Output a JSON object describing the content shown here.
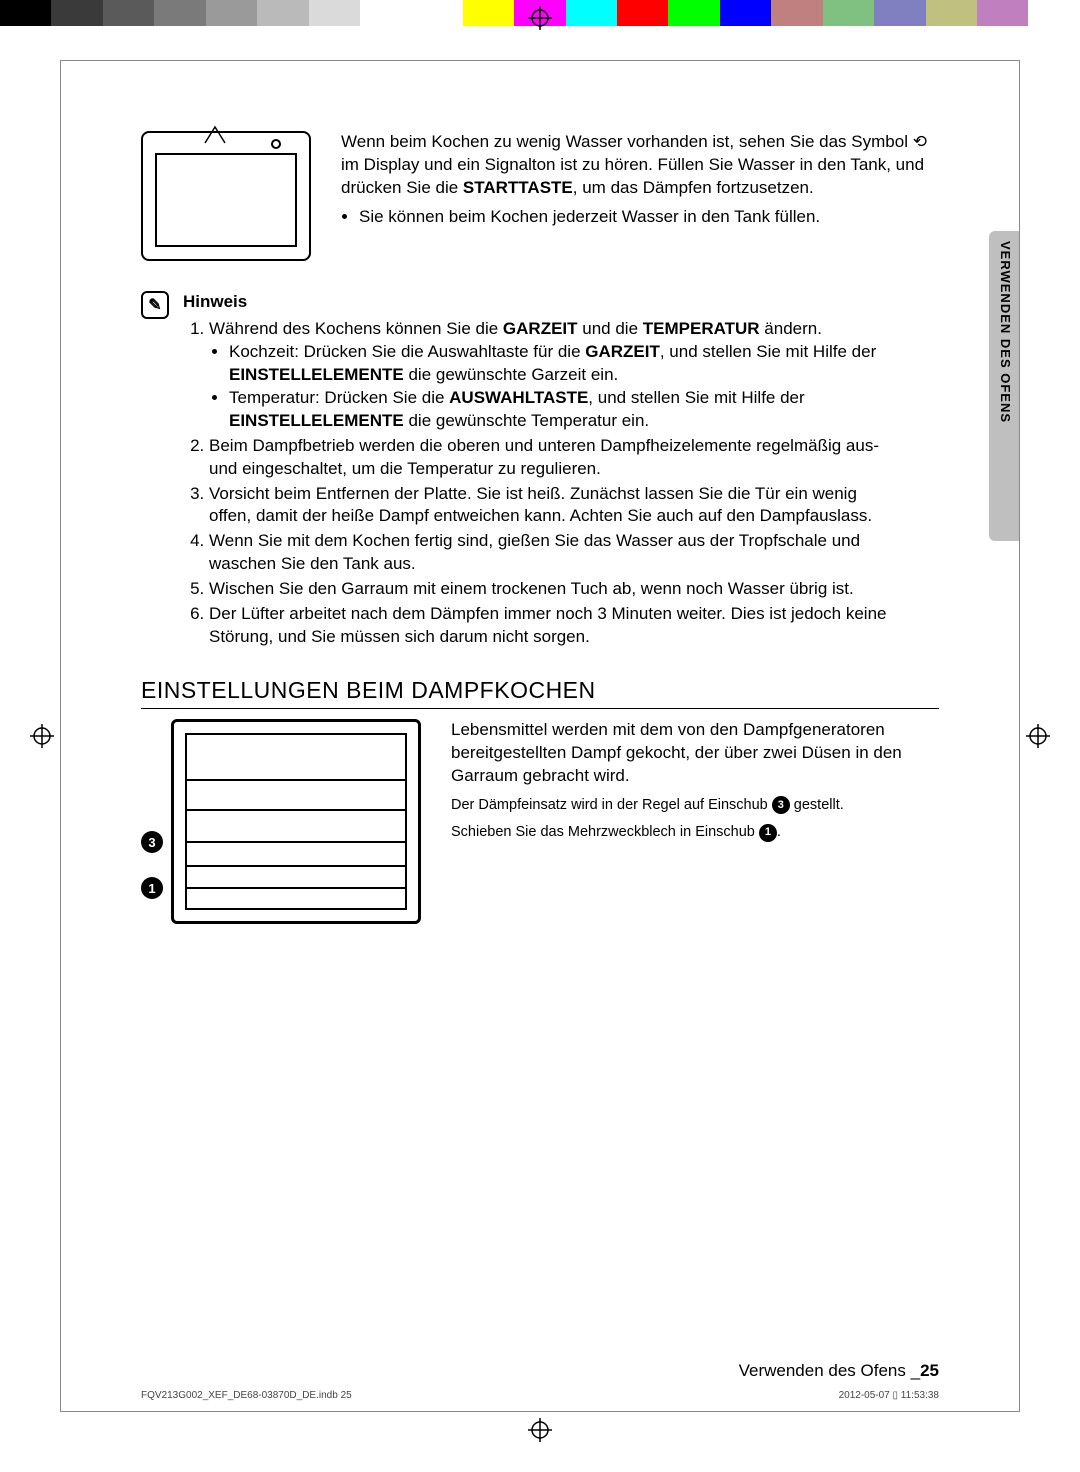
{
  "colorbar": [
    "#000000",
    "#3a3a3a",
    "#5a5a5a",
    "#7a7a7a",
    "#9a9a9a",
    "#bababa",
    "#dadada",
    "#ffffff",
    "#ffffff",
    "#ffff00",
    "#ff00ff",
    "#00ffff",
    "#ff0000",
    "#00ff00",
    "#0000ff",
    "#c08080",
    "#80c080",
    "#8080c0",
    "#c0c080",
    "#c080c0",
    "#ffffff"
  ],
  "side_tab": "VERWENDEN DES OFENS",
  "intro": {
    "line1": "Wenn beim Kochen zu wenig Wasser vorhanden ist, sehen Sie das Symbol ",
    "symbol": "⟲",
    "line1b": " im Display und ein Signalton ist zu hören. Füllen Sie Wasser in den Tank, und drücken Sie die ",
    "bold1": "STARTTASTE",
    "line1c": ", um das Dämpfen fortzusetzen.",
    "bullet": "Sie können beim Kochen jederzeit Wasser in den Tank füllen."
  },
  "hinweis": {
    "label": "Hinweis",
    "items": [
      {
        "text_a": "Während des Kochens können Sie die ",
        "b1": "GARZEIT",
        "mid": " und die ",
        "b2": "TEMPERATUR",
        "text_b": " ändern.",
        "sub": [
          {
            "pre": "Kochzeit: Drücken Sie die Auswahltaste für die ",
            "b1": "GARZEIT",
            "mid": ", und stellen Sie mit Hilfe der ",
            "b2": "EINSTELLELEMENTE",
            "post": " die gewünschte Garzeit ein."
          },
          {
            "pre": "Temperatur: Drücken Sie die ",
            "b1": "AUSWAHLTASTE",
            "mid": ", und stellen Sie mit Hilfe der ",
            "b2": "EINSTELLELEMENTE",
            "post": " die gewünschte Temperatur ein."
          }
        ]
      },
      {
        "plain": "Beim Dampfbetrieb werden die oberen und unteren Dampfheizelemente regelmäßig aus- und eingeschaltet, um die Temperatur zu regulieren."
      },
      {
        "plain": "Vorsicht beim Entfernen der Platte. Sie ist heiß. Zunächst lassen Sie die Tür ein wenig offen, damit der heiße Dampf entweichen kann. Achten Sie auch auf den Dampfauslass."
      },
      {
        "plain": "Wenn Sie mit dem Kochen fertig sind, gießen Sie das Wasser aus der Tropfschale und waschen Sie den Tank aus."
      },
      {
        "plain": "Wischen Sie den Garraum mit einem trockenen Tuch ab, wenn noch Wasser übrig ist."
      },
      {
        "plain": "Der Lüfter arbeitet nach dem Dämpfen immer noch 3 Minuten weiter. Dies ist jedoch keine Störung, und Sie müssen sich darum nicht sorgen."
      }
    ]
  },
  "section_title": "EINSTELLUNGEN BEIM DAMPFKOCHEN",
  "steam": {
    "p1": "Lebensmittel werden mit dem von den Dampfgeneratoren bereitgestellten Dampf gekocht, der über zwei Düsen in den Garraum gebracht wird.",
    "p2a": "Der Dämpfeinsatz wird in der Regel auf Einschub ",
    "n3": "3",
    "p2b": " gestellt.",
    "p3a": "Schieben Sie das Mehrzweckblech in Einschub ",
    "n1": "1",
    "p3b": "."
  },
  "footer": {
    "text": "Verwenden des Ofens _",
    "num": "25"
  },
  "print": {
    "left": "FQV213G002_XEF_DE68-03870D_DE.indb   25",
    "right": "2012-05-07   ▯ 11:53:38"
  }
}
